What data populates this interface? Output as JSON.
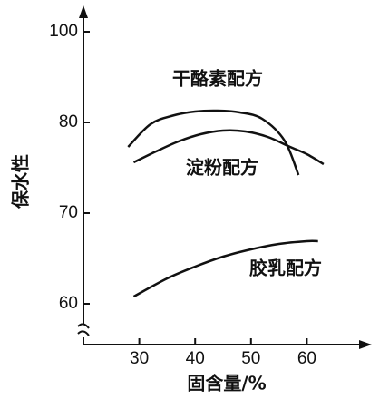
{
  "chart_data": {
    "type": "line",
    "y_label": "保水性",
    "x_label": "固含量/%",
    "xlim": [
      20,
      70
    ],
    "xticks": [
      30,
      40,
      50,
      60
    ],
    "ylim": [
      55,
      100
    ],
    "yticks": [
      60,
      70,
      80,
      100
    ],
    "series": [
      {
        "name": "干酪素配方",
        "color": "#111111",
        "x": [
          28,
          32,
          36,
          40,
          44,
          48,
          52,
          56,
          58.5
        ],
        "values": [
          77.3,
          79.8,
          81.5,
          82.4,
          82.6,
          82.2,
          80.8,
          78,
          74.2
        ]
      },
      {
        "name": "淀粉配方",
        "color": "#111111",
        "x": [
          29,
          33,
          37,
          41,
          45,
          49,
          53,
          57,
          60,
          63
        ],
        "values": [
          75.6,
          76.8,
          77.9,
          78.7,
          79.1,
          79.0,
          78.4,
          77.3,
          76.5,
          75.4
        ]
      },
      {
        "name": "胶乳配方",
        "color": "#111111",
        "x": [
          29,
          35,
          40,
          45,
          50,
          55,
          60,
          62
        ],
        "values": [
          60.8,
          62.8,
          64.1,
          65.2,
          66,
          66.6,
          66.9,
          66.9
        ]
      }
    ]
  }
}
